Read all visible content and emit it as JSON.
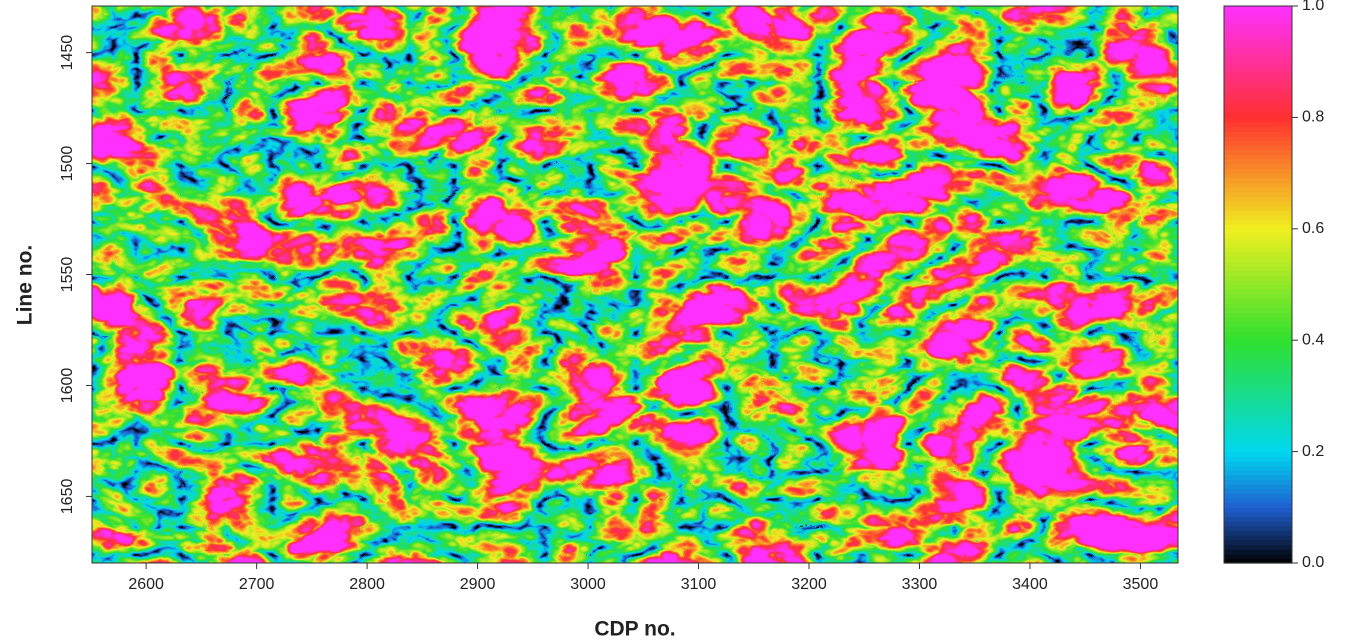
{
  "chart_data": {
    "type": "heatmap",
    "x_label": "CDP no.",
    "y_label": "Line no.",
    "xlim": [
      2551,
      3534
    ],
    "xticks": [
      2600,
      2700,
      2800,
      2900,
      3000,
      3100,
      3200,
      3300,
      3400,
      3500
    ],
    "ylim": [
      1429,
      1680
    ],
    "yticks": [
      1450,
      1500,
      1550,
      1600,
      1650
    ],
    "y_inverted": true,
    "colorbar": {
      "lim": [
        0,
        1
      ],
      "ticks": [
        {
          "value": 0,
          "label": "0.0"
        },
        0.2,
        0.4,
        0.6,
        0.8,
        {
          "value": 1,
          "label": "1.0"
        }
      ]
    },
    "colormap": [
      {
        "value": 0,
        "color": "#000000"
      },
      {
        "value": 0.1,
        "color": "#1f5fd0"
      },
      {
        "value": 0.2,
        "color": "#00d8f0"
      },
      {
        "value": 0.4,
        "color": "#30e030"
      },
      {
        "value": 0.6,
        "color": "#f0f020"
      },
      {
        "value": 0.8,
        "color": "#ff3030"
      },
      {
        "value": 1,
        "color": "#ff30ff"
      }
    ]
  }
}
